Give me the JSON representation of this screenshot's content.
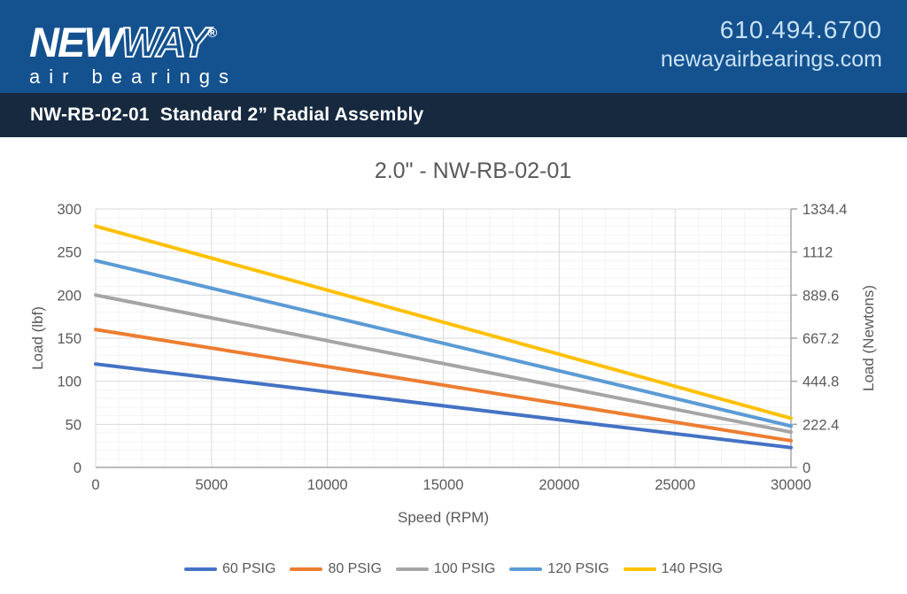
{
  "header": {
    "logo": {
      "new": "NEW",
      "way": "WAY",
      "registered": "®",
      "tagline": "air bearings"
    },
    "contact": {
      "phone": "610.494.6700",
      "website": "newayairbearings.com"
    }
  },
  "title_bar": {
    "text": "NW-RB-02-01  Standard 2” Radial Assembly"
  },
  "colors": {
    "header_bg": "#14518F",
    "title_bar_bg": "#16293F",
    "contact_text": "#C9E2F5",
    "chart_text": "#595959",
    "major_grid": "#D9D9D9",
    "minor_grid": "#F3F3F3",
    "axis_line": "#A6A6A6"
  },
  "chart_data": {
    "type": "line",
    "title": "2.0\" - NW-RB-02-01",
    "xlabel": "Speed (RPM)",
    "ylabel_left": "Load (lbf)",
    "ylabel_right": "Load (Newtons)",
    "xlim": [
      0,
      30000
    ],
    "ylim": [
      0,
      300
    ],
    "x_ticks": [
      0,
      5000,
      10000,
      15000,
      20000,
      25000,
      30000
    ],
    "y_ticks_left": [
      0,
      50,
      100,
      150,
      200,
      250,
      300
    ],
    "y_ticks_right": [
      "0",
      "222.4",
      "444.8",
      "667.2",
      "889.6",
      "1112",
      "1334.4"
    ],
    "x_minor_step": 1000,
    "y_minor_step": 10,
    "grid": {
      "major": true,
      "minor": true
    },
    "legend_position": "bottom",
    "series": [
      {
        "name": "60 PSIG",
        "color": "#4472C4",
        "x": [
          0,
          30000
        ],
        "y": [
          120,
          23
        ]
      },
      {
        "name": "80 PSIG",
        "color": "#ED7D31",
        "x": [
          0,
          30000
        ],
        "y": [
          160,
          31
        ]
      },
      {
        "name": "100 PSIG",
        "color": "#A5A5A5",
        "x": [
          0,
          30000
        ],
        "y": [
          200,
          41
        ]
      },
      {
        "name": "120 PSIG",
        "color": "#5B9BD5",
        "x": [
          0,
          30000
        ],
        "y": [
          240,
          48
        ]
      },
      {
        "name": "140 PSIG",
        "color": "#FFC000",
        "x": [
          0,
          30000
        ],
        "y": [
          280,
          57
        ]
      }
    ]
  }
}
